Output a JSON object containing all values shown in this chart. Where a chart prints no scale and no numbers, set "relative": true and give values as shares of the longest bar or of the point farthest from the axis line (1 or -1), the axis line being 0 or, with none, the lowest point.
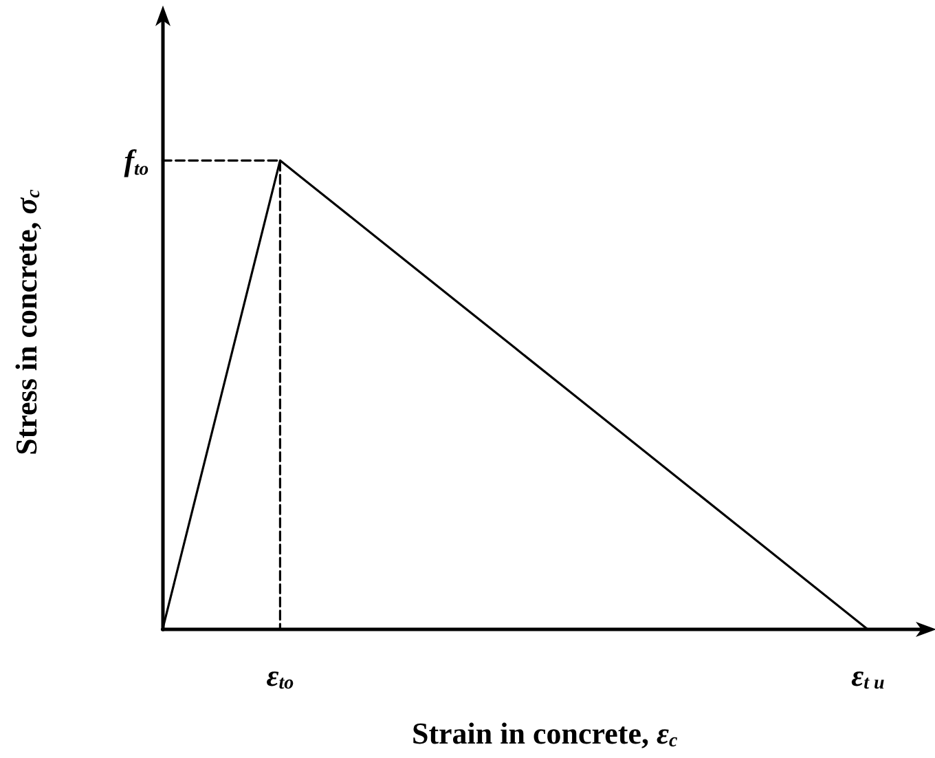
{
  "chart_data": {
    "type": "line",
    "xlabel": "Strain in concrete, ε$_{c}$",
    "ylabel": "Stress in concrete, σ$_{c}$",
    "relative": true,
    "categories": [
      null,
      null,
      "ε$_{to}$",
      null,
      null,
      null,
      null,
      null,
      null,
      null,
      null,
      null,
      "ε$_{t u}$",
      null
    ],
    "series": [
      {
        "values": [
          0,
          0.5,
          1,
          0.9,
          0.8,
          0.7,
          0.6,
          0.5,
          0.4,
          0.3,
          0.2,
          0.1,
          0,
          null
        ],
        "color": "#000000",
        "line_style": "solid"
      },
      {
        "type": "step",
        "values": [
          1,
          1,
          1,
          0,
          null,
          null,
          null,
          null,
          null,
          null,
          null,
          null,
          null,
          null
        ],
        "color": "#000000",
        "line_style": "dashed"
      }
    ],
    "annotations": [
      "f$_{to}$"
    ],
    "marker": "none",
    "grid": false
  }
}
